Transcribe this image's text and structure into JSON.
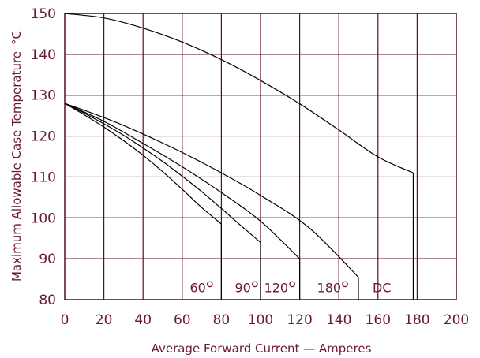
{
  "chart_data": {
    "type": "line",
    "xlabel": "Average Forward Current — Amperes",
    "ylabel": "Maximum Allowable Case Temperature",
    "ylabel_unit": "°C",
    "xlim": [
      0,
      200
    ],
    "ylim": [
      80,
      150
    ],
    "x_ticks": [
      "0",
      "20",
      "40",
      "60",
      "80",
      "100",
      "120",
      "140",
      "160",
      "180",
      "200"
    ],
    "y_ticks": [
      "80",
      "90",
      "100",
      "110",
      "120",
      "130",
      "140",
      "150"
    ],
    "grid": true,
    "series": [
      {
        "name": "60°",
        "label_number": "60",
        "x": [
          0,
          10,
          20,
          30,
          40,
          50,
          60,
          70,
          80
        ],
        "y": [
          128,
          125.2,
          122.2,
          118.9,
          115.3,
          111.3,
          107,
          102.5,
          98.5
        ],
        "end": 80
      },
      {
        "name": "90°",
        "label_number": "90",
        "x": [
          0,
          10,
          20,
          30,
          40,
          50,
          60,
          70,
          80,
          90,
          100
        ],
        "y": [
          128,
          125.6,
          123,
          120.2,
          117.1,
          113.8,
          110.2,
          106.4,
          102.3,
          98.1,
          94
        ],
        "end": 100
      },
      {
        "name": "120°",
        "label_number": "120",
        "x": [
          0,
          20,
          40,
          60,
          80,
          100,
          120
        ],
        "y": [
          128,
          123.6,
          118.2,
          112.5,
          106.2,
          99.2,
          90
        ],
        "end": 120
      },
      {
        "name": "180°",
        "label_number": "180",
        "x": [
          0,
          25,
          50,
          75,
          100,
          125,
          150
        ],
        "y": [
          128,
          123.6,
          118.3,
          112.3,
          105.5,
          97.5,
          85.5
        ],
        "end": 150
      },
      {
        "name": "DC",
        "label_number": "",
        "x": [
          0,
          20,
          40,
          60,
          80,
          100,
          120,
          140,
          160,
          178
        ],
        "y": [
          150,
          148.9,
          146.4,
          143,
          138.7,
          133.6,
          127.9,
          121.5,
          114.9,
          111
        ],
        "end": 178
      }
    ],
    "curve_labels": [
      {
        "series": "60°",
        "text": "60",
        "degree": true,
        "x": 68,
        "y": 83
      },
      {
        "series": "90°",
        "text": "90",
        "degree": true,
        "x": 91,
        "y": 83
      },
      {
        "series": "120°",
        "text": "120",
        "degree": true,
        "x": 108,
        "y": 83
      },
      {
        "series": "180°",
        "text": "180",
        "degree": true,
        "x": 135,
        "y": 83
      },
      {
        "series": "DC",
        "text": "DC",
        "degree": false,
        "x": 162,
        "y": 83
      }
    ]
  }
}
